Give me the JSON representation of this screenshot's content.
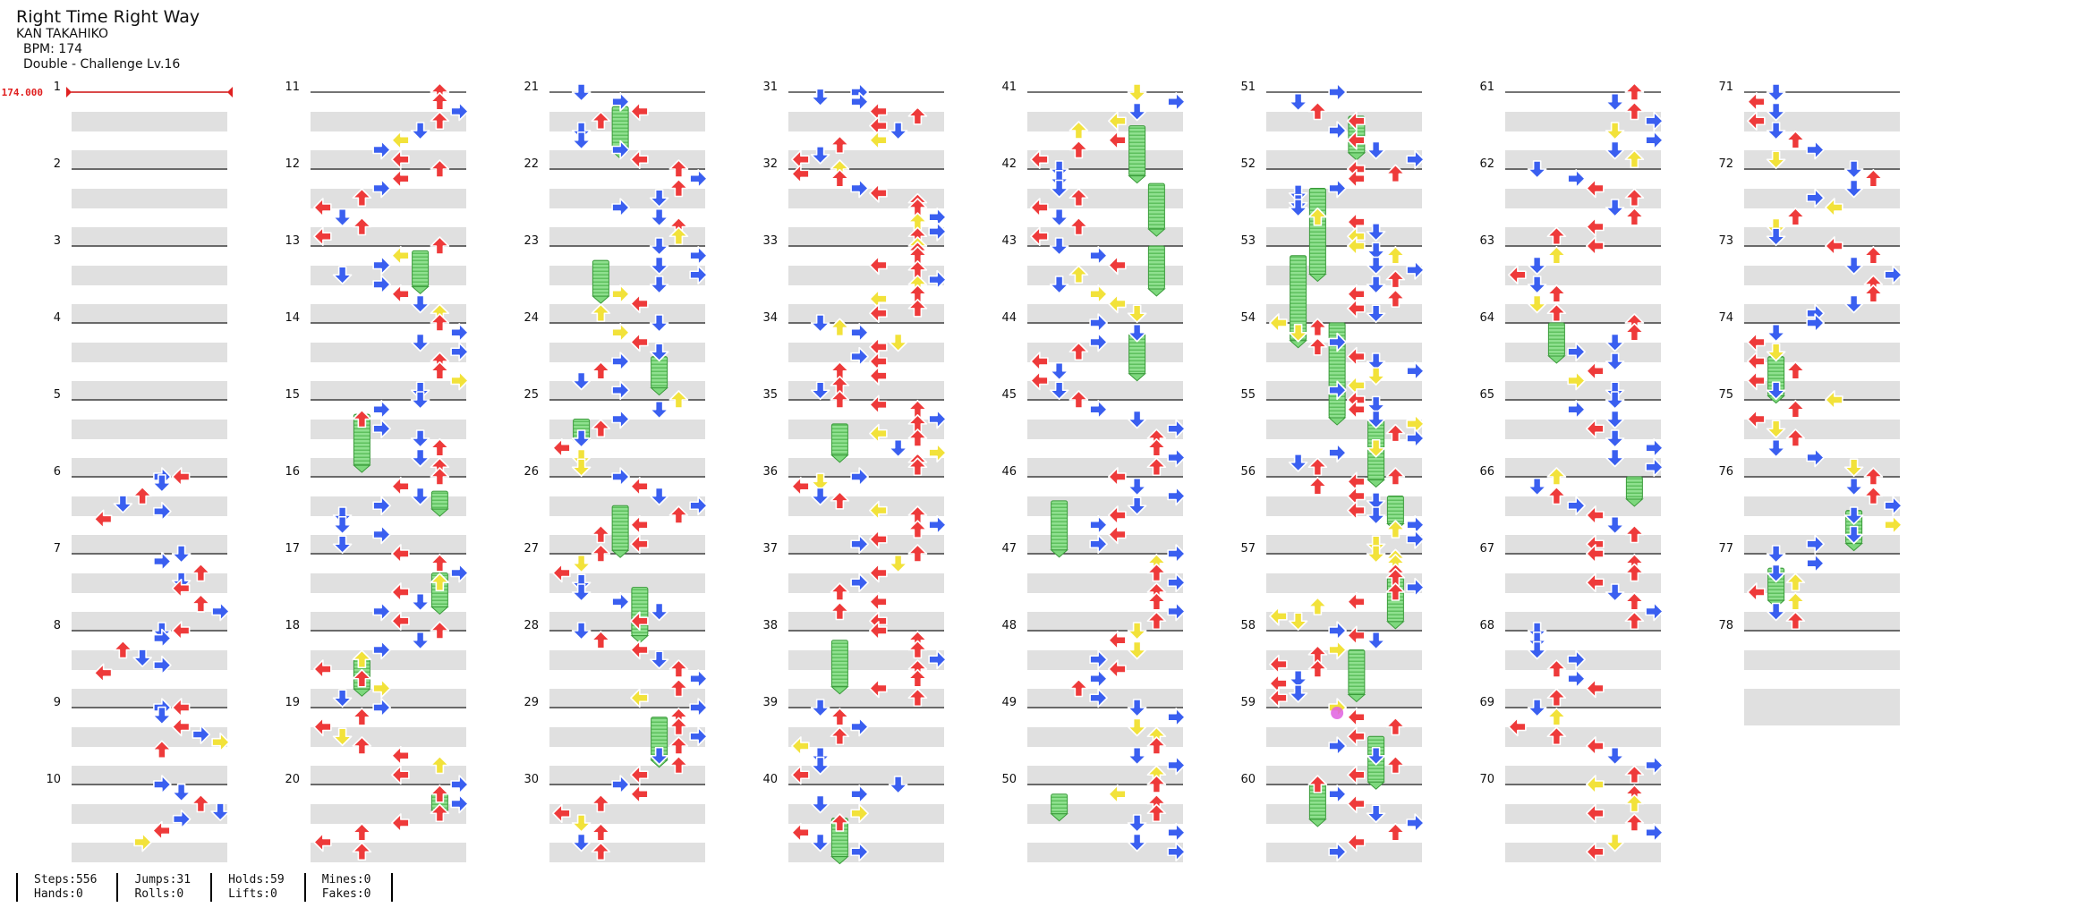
{
  "song": {
    "title": "Right Time Right Way",
    "artist": "KAN TAKAHIKO",
    "bpm_text": "BPM: 174",
    "chart_text": "Double - Challenge Lv.16"
  },
  "bpm_marker": "174.000",
  "total_measures": 78,
  "measures_per_column": 10,
  "colors": {
    "left": "#ee3a3a",
    "up": "#ee3a3a",
    "down": "#3a5ff0",
    "right": "#3a5ff0",
    "quarter_red": "#ee3a3a",
    "eighth_blue": "#3a5ff0",
    "sixteenth_yellow": "#f2e23a",
    "hold": "#77dd77",
    "mine_magenta": "#e060e0",
    "stripe": "#e0e0e0",
    "bpm_change": "#e02020"
  },
  "stats": [
    [
      "Steps:556",
      "Hands:0"
    ],
    [
      "Jumps:31",
      "Rolls:0"
    ],
    [
      "Holds:59",
      "Lifts:0"
    ],
    [
      "Mines:0",
      "Fakes:0"
    ]
  ],
  "chart_data": {
    "type": "table",
    "description_fields": [
      "measure",
      "notes"
    ],
    "notes_by_measure": {
      "6": [
        [
          0.0,
          "R",
          5
        ],
        [
          0.0,
          "L",
          6
        ],
        [
          0.08,
          "D",
          5
        ],
        [
          0.25,
          "U",
          4
        ],
        [
          0.35,
          "D",
          3
        ],
        [
          0.45,
          "R",
          5
        ],
        [
          0.55,
          "L",
          2
        ]
      ],
      "7": [
        [
          0.0,
          "D",
          6
        ],
        [
          0.1,
          "R",
          5
        ],
        [
          0.25,
          "U",
          7
        ],
        [
          0.35,
          "D",
          6
        ],
        [
          0.45,
          "L",
          6
        ],
        [
          0.65,
          "U",
          7
        ],
        [
          0.75,
          "R",
          8
        ]
      ],
      "8": [
        [
          0.0,
          "D",
          5
        ],
        [
          0.0,
          "L",
          6
        ],
        [
          0.1,
          "R",
          5
        ],
        [
          0.25,
          "U",
          3
        ],
        [
          0.35,
          "D",
          4
        ],
        [
          0.45,
          "R",
          5
        ],
        [
          0.55,
          "L",
          2
        ]
      ],
      "9": [
        [
          0.0,
          "R",
          5
        ],
        [
          0.0,
          "L",
          6
        ],
        [
          0.1,
          "D",
          5
        ],
        [
          0.25,
          "L",
          6
        ],
        [
          0.35,
          "R",
          7
        ],
        [
          0.45,
          "Y",
          8
        ],
        [
          0.55,
          "U",
          5
        ]
      ],
      "10": [
        [
          0.0,
          "R",
          5
        ],
        [
          0.1,
          "D",
          6
        ],
        [
          0.25,
          "U",
          7
        ],
        [
          0.35,
          "D",
          8
        ],
        [
          0.45,
          "R",
          6
        ],
        [
          0.6,
          "L",
          5
        ],
        [
          0.75,
          "Y",
          4
        ]
      ]
    }
  }
}
